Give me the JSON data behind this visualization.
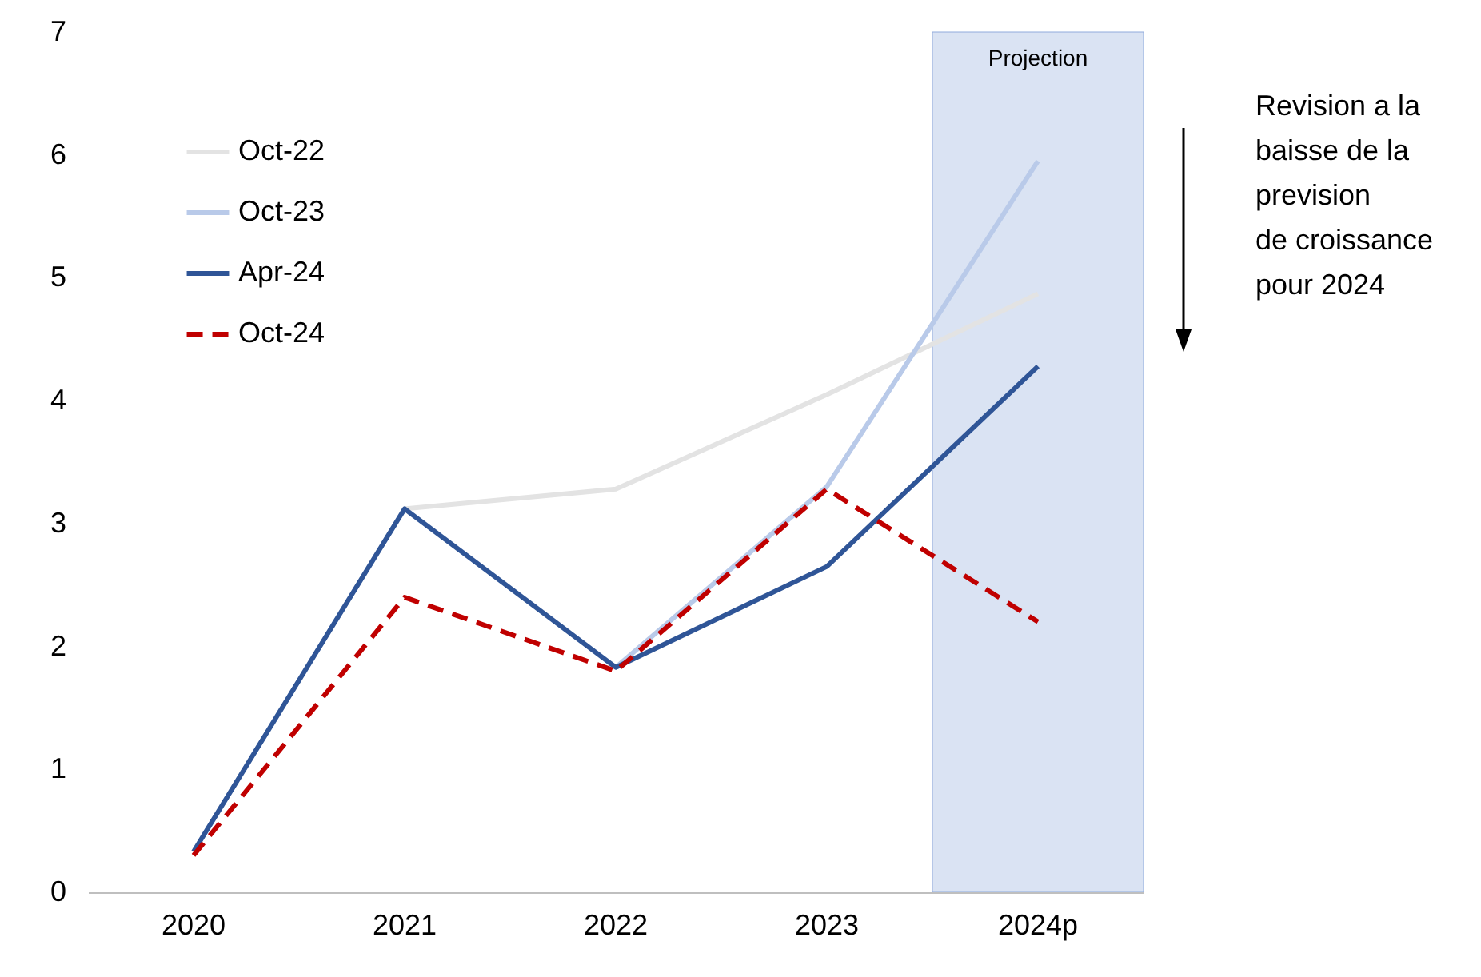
{
  "chart_data": {
    "type": "line",
    "categories": [
      "2020",
      "2021",
      "2022",
      "2023",
      "2024p"
    ],
    "series": [
      {
        "name": "Oct-22",
        "color": "#e3e3e3",
        "line_style": "solid",
        "values": [
          null,
          3.12,
          3.28,
          4.05,
          4.87
        ]
      },
      {
        "name": "Oct-23",
        "color": "#b9cae9",
        "line_style": "solid",
        "values": [
          null,
          null,
          1.83,
          3.3,
          5.95
        ]
      },
      {
        "name": "Apr-24",
        "color": "#2f5597",
        "line_style": "solid",
        "values": [
          0.33,
          3.12,
          1.83,
          2.65,
          4.28
        ]
      },
      {
        "name": "Oct-24",
        "color": "#c00000",
        "line_style": "dashed",
        "values": [
          0.3,
          2.4,
          1.8,
          3.28,
          2.2
        ]
      }
    ],
    "ylim": [
      0,
      7
    ],
    "yticks": [
      0,
      1,
      2,
      3,
      4,
      5,
      6,
      7
    ],
    "grid": false,
    "legend": "top left",
    "marker": "none",
    "bands": [
      {
        "axis": "x",
        "from": "2024p",
        "to": "2024p",
        "label": "Projection",
        "color": "#dae3f3"
      }
    ],
    "annotations": [
      "Revision a la\nbaisse de la\nprevision\nde croissance\npour 2024"
    ]
  }
}
